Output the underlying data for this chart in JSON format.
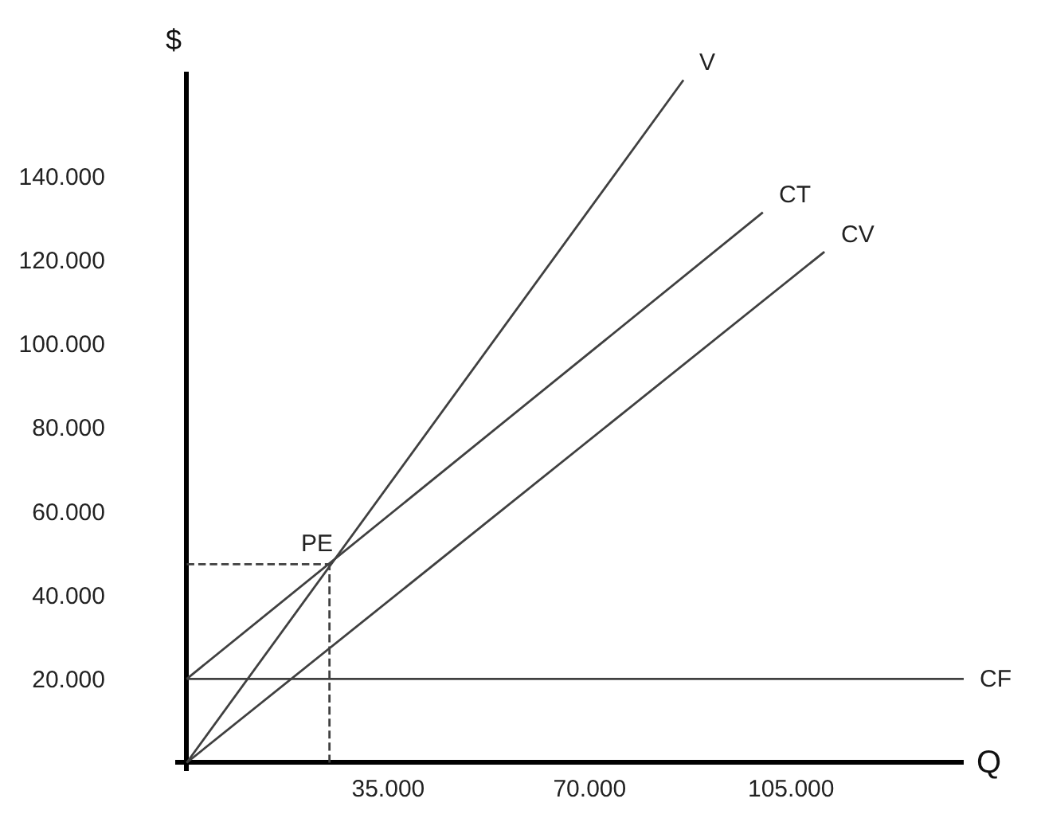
{
  "chart_data": {
    "type": "line",
    "xlabel": "Q",
    "ylabel": "$",
    "xlim": [
      -2000,
      135000
    ],
    "ylim": [
      -2000,
      165000
    ],
    "xticks": [
      {
        "value": 35000,
        "label": "35.000"
      },
      {
        "value": 70000,
        "label": "70.000"
      },
      {
        "value": 105000,
        "label": "105.000"
      }
    ],
    "yticks": [
      {
        "value": 20000,
        "label": "20.000"
      },
      {
        "value": 40000,
        "label": "40.000"
      },
      {
        "value": 60000,
        "label": "60.000"
      },
      {
        "value": 80000,
        "label": "80.000"
      },
      {
        "value": 100000,
        "label": "100.000"
      },
      {
        "value": 120000,
        "label": "120.000"
      },
      {
        "value": 140000,
        "label": "140.000"
      }
    ],
    "legend": false,
    "marker": "none",
    "series": [
      {
        "name": "V",
        "color": "#404040",
        "x": [
          0,
          86300
        ],
        "values": [
          0,
          163000
        ]
      },
      {
        "name": "CT",
        "color": "#404040",
        "x": [
          0,
          100100
        ],
        "values": [
          20000,
          131400
        ]
      },
      {
        "name": "CV",
        "color": "#404040",
        "x": [
          0,
          110800
        ],
        "values": [
          0,
          122000
        ]
      },
      {
        "name": "CF",
        "color": "#404040",
        "x": [
          0,
          135000
        ],
        "values": [
          20000,
          20000
        ]
      },
      {
        "color": "#404040",
        "line_style": "dashed",
        "x": [
          0,
          24800
        ],
        "values": [
          47400,
          47400
        ]
      },
      {
        "color": "#404040",
        "line_style": "dashed",
        "x": [
          24800,
          24800
        ],
        "values": [
          0,
          47400
        ]
      }
    ],
    "annotations": [
      {
        "text": "PE",
        "x": 24800,
        "y": 47400
      }
    ]
  }
}
